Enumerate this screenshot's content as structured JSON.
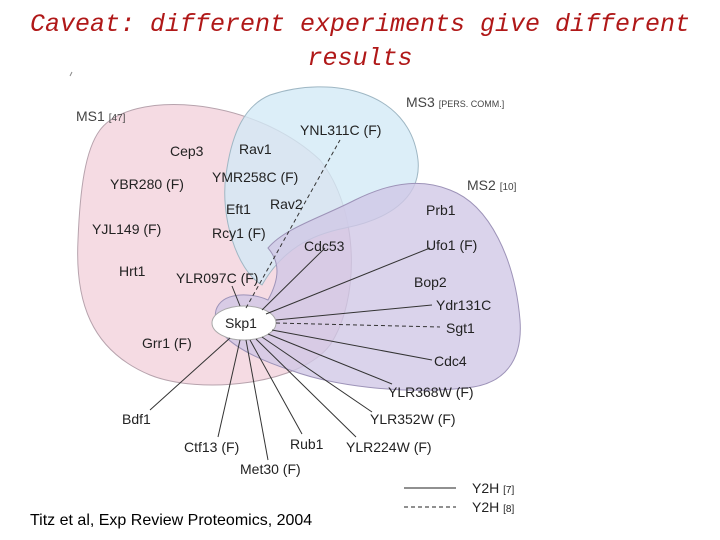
{
  "title": {
    "line1": "Caveat: different experiments give different",
    "line2": "results"
  },
  "sets": {
    "ms1": {
      "name": "MS1",
      "ref": "[47]"
    },
    "ms3": {
      "name": "MS3",
      "ref": "[PERS. COMM.]"
    },
    "ms2": {
      "name": "MS2",
      "ref": "[10]"
    }
  },
  "proteins": {
    "ynl311c": "YNL311C (F)",
    "cep3": "Cep3",
    "rav1": "Rav1",
    "ybr280": "YBR280 (F)",
    "ymr258c": "YMR258C (F)",
    "eft1": "Eft1",
    "rav2": "Rav2",
    "yjl149": "YJL149 (F)",
    "rcy1": "Rcy1 (F)",
    "cdc53": "Cdc53",
    "prb1": "Prb1",
    "ufo1": "Ufo1 (F)",
    "hrt1": "Hrt1",
    "ylr097c": "YLR097C (F)",
    "bop2": "Bop2",
    "ydr131c": "Ydr131C",
    "skp1": "Skp1",
    "sgt1": "Sgt1",
    "grr1": "Grr1 (F)",
    "cdc4": "Cdc4",
    "ylr368w": "YLR368W (F)",
    "bdf1": "Bdf1",
    "ylr352w": "YLR352W (F)",
    "ctf13": "Ctf13 (F)",
    "rub1": "Rub1",
    "ylr224w": "YLR224W (F)",
    "met30": "Met30 (F)"
  },
  "legend": {
    "y2h_solid": {
      "label": "Y2H",
      "ref": "[7]"
    },
    "y2h_dashed": {
      "label": "Y2H",
      "ref": "[8]"
    }
  },
  "colors": {
    "ms1_fill": "#f2cfd9",
    "ms3_fill": "#d2e9f6",
    "ms2_fill": "#cfc6e6",
    "title": "#b01818",
    "set_label": "#444444"
  },
  "citation": "Titz et al, Exp Review Proteomics, 2004"
}
